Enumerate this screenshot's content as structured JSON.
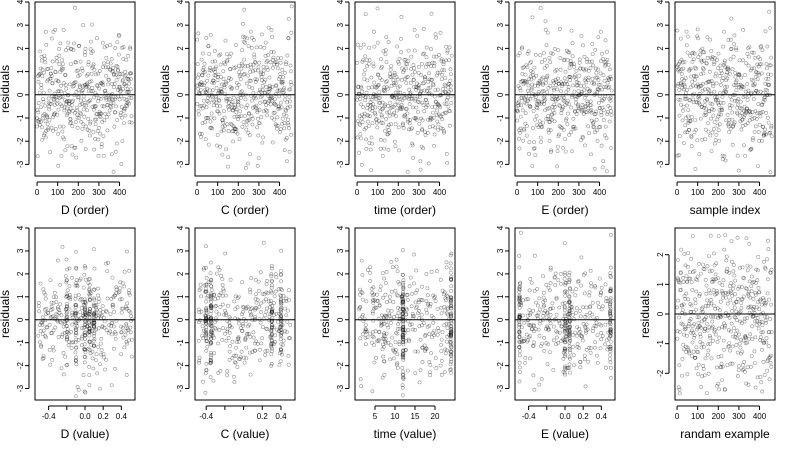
{
  "chart_data": [
    {
      "type": "scatter",
      "xlabel": "D (order)",
      "ylabel": "residuals",
      "xlim": [
        -10,
        475
      ],
      "ylim": [
        -3.5,
        4
      ],
      "xticks": [
        0,
        100,
        200,
        300,
        400
      ],
      "yticks": [
        -3,
        -2,
        -1,
        0,
        1,
        2,
        3,
        4
      ],
      "reference_line": 0,
      "seed": 11,
      "mode": "index",
      "n": 460
    },
    {
      "type": "scatter",
      "xlabel": "C (order)",
      "ylabel": "residuals",
      "xlim": [
        -10,
        475
      ],
      "ylim": [
        -3.5,
        4
      ],
      "xticks": [
        0,
        100,
        200,
        300,
        400
      ],
      "yticks": [
        -3,
        -2,
        -1,
        0,
        1,
        2,
        3,
        4
      ],
      "reference_line": 0,
      "seed": 23,
      "mode": "index",
      "n": 460
    },
    {
      "type": "scatter",
      "xlabel": "time (order)",
      "ylabel": "residuals",
      "xlim": [
        -10,
        475
      ],
      "ylim": [
        -3.5,
        4
      ],
      "xticks": [
        0,
        100,
        200,
        300,
        400
      ],
      "yticks": [
        -3,
        -2,
        -1,
        0,
        1,
        2,
        3,
        4
      ],
      "reference_line": 0,
      "seed": 37,
      "mode": "index",
      "n": 460
    },
    {
      "type": "scatter",
      "xlabel": "E (order)",
      "ylabel": "residuals",
      "xlim": [
        -10,
        475
      ],
      "ylim": [
        -3.5,
        4
      ],
      "xticks": [
        0,
        100,
        200,
        300,
        400
      ],
      "yticks": [
        -3,
        -2,
        -1,
        0,
        1,
        2,
        3,
        4
      ],
      "reference_line": 0,
      "seed": 41,
      "mode": "index",
      "n": 460
    },
    {
      "type": "scatter",
      "xlabel": "sample index",
      "ylabel": "residuals",
      "xlim": [
        -10,
        475
      ],
      "ylim": [
        -3.5,
        4
      ],
      "xticks": [
        0,
        100,
        200,
        300,
        400
      ],
      "yticks": [
        -3,
        -2,
        -1,
        0,
        1,
        2,
        3,
        4
      ],
      "reference_line": 0,
      "seed": 53,
      "mode": "index",
      "n": 460
    },
    {
      "type": "scatter",
      "xlabel": "D (value)",
      "ylabel": "residuals",
      "xlim": [
        -0.55,
        0.55
      ],
      "ylim": [
        -3.5,
        4
      ],
      "xticks": [
        -0.4,
        -0.2,
        0,
        0.2,
        0.4
      ],
      "xtick_labels": [
        "-0.4",
        "",
        "0.0",
        "0.2",
        "0.4"
      ],
      "yticks": [
        -3,
        -2,
        -1,
        0,
        1,
        2,
        3,
        4
      ],
      "reference_line": 0,
      "seed": 61,
      "mode": "value",
      "x_range": [
        -0.52,
        0.52
      ],
      "clusters": [
        -0.2,
        -0.1,
        0.0,
        0.05,
        0.1
      ],
      "n": 460
    },
    {
      "type": "scatter",
      "xlabel": "C (value)",
      "ylabel": "residuals",
      "xlim": [
        -0.52,
        0.55
      ],
      "ylim": [
        -3.5,
        4
      ],
      "xticks": [
        -0.4,
        -0.2,
        0,
        0.2,
        0.4
      ],
      "xtick_labels": [
        "-0.4",
        "",
        "",
        "0.2",
        "0.4"
      ],
      "yticks": [
        -3,
        -2,
        -1,
        0,
        1,
        2,
        3,
        4
      ],
      "reference_line": 0,
      "seed": 73,
      "mode": "value",
      "x_range": [
        -0.48,
        0.5
      ],
      "clusters": [
        -0.4,
        -0.35,
        0.3,
        0.4
      ],
      "n": 460
    },
    {
      "type": "scatter",
      "xlabel": "time (value)",
      "ylabel": "residuals",
      "xlim": [
        0,
        25
      ],
      "ylim": [
        -3.5,
        4
      ],
      "xticks": [
        5,
        10,
        15,
        20
      ],
      "yticks": [
        -3,
        -2,
        -1,
        0,
        1,
        2,
        3,
        4
      ],
      "reference_line": 0,
      "seed": 83,
      "mode": "value",
      "x_range": [
        1,
        24
      ],
      "clusters": [
        12,
        24
      ],
      "n": 460
    },
    {
      "type": "scatter",
      "xlabel": "E (value)",
      "ylabel": "residuals",
      "xlim": [
        -0.55,
        0.55
      ],
      "ylim": [
        -3.5,
        4
      ],
      "xticks": [
        -0.4,
        -0.2,
        0,
        0.2,
        0.4
      ],
      "xtick_labels": [
        "-0.4",
        "",
        "0.0",
        "0.2",
        "0.4"
      ],
      "yticks": [
        -3,
        -2,
        -1,
        0,
        1,
        2,
        3,
        4
      ],
      "reference_line": 0,
      "seed": 97,
      "mode": "value",
      "x_range": [
        -0.5,
        0.5
      ],
      "clusters": [
        -0.5,
        0.0,
        0.05,
        0.5
      ],
      "n": 460
    },
    {
      "type": "scatter",
      "xlabel": "randam example",
      "ylabel": "residuals",
      "xlim": [
        -10,
        475
      ],
      "ylim": [
        -2.9,
        2.9
      ],
      "xticks": [
        0,
        100,
        200,
        300,
        400
      ],
      "yticks": [
        -2,
        -1,
        0,
        1,
        2
      ],
      "reference_line": 0,
      "seed": 101,
      "mode": "index",
      "n": 460
    }
  ],
  "colors": {
    "points": "#000000",
    "axes": "#000000",
    "background": "#ffffff"
  }
}
